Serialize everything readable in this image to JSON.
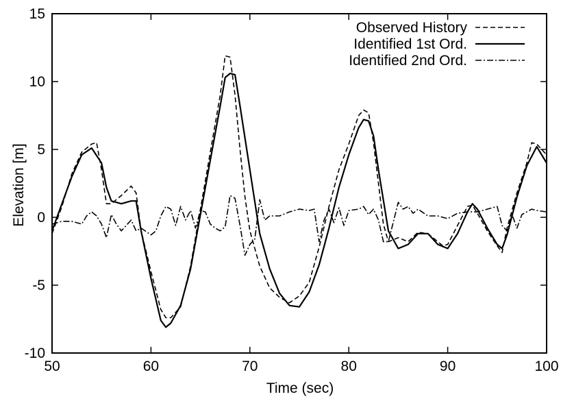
{
  "chart_data": {
    "type": "line",
    "title": "",
    "xlabel": "Time (sec)",
    "ylabel": "Elevation [m]",
    "xlim": [
      50,
      100
    ],
    "ylim": [
      -10,
      15
    ],
    "xticks": [
      50,
      60,
      70,
      80,
      90,
      100
    ],
    "yticks": [
      -10,
      -5,
      0,
      5,
      10,
      15
    ],
    "xtick_labels": [
      "50",
      "60",
      "70",
      "80",
      "90",
      "100"
    ],
    "ytick_labels": [
      "-10",
      "-5",
      "0",
      "5",
      "10",
      "15"
    ],
    "grid": false,
    "legend_position": "top-right",
    "series": [
      {
        "name": "Observed History",
        "line_style": "dashed",
        "color": "#000000",
        "x": [
          50,
          51,
          52,
          53,
          54,
          54.5,
          55,
          55.5,
          56,
          57,
          58,
          58.5,
          59,
          60,
          61,
          61.5,
          62,
          63,
          64,
          65,
          66,
          67,
          67.5,
          68,
          68.5,
          69,
          69.5,
          70,
          71,
          72,
          73,
          74,
          75,
          76,
          77,
          78,
          79,
          80,
          81,
          81.5,
          82,
          82.5,
          83,
          83.5,
          84,
          85,
          86,
          87,
          88,
          89,
          89.5,
          90,
          91,
          92,
          92.5,
          93,
          94,
          95,
          95.5,
          96,
          97,
          98,
          98.5,
          99,
          100
        ],
        "y": [
          -1.2,
          0.8,
          3.2,
          4.8,
          5.4,
          5.5,
          3.5,
          1.0,
          1.0,
          1.6,
          2.3,
          1.8,
          -1.0,
          -4.0,
          -6.8,
          -7.4,
          -7.4,
          -6.6,
          -3.6,
          0.6,
          4.8,
          9.0,
          11.9,
          11.8,
          9.0,
          5.0,
          1.5,
          -1.0,
          -3.6,
          -5.2,
          -5.9,
          -6.3,
          -5.8,
          -4.8,
          -2.2,
          0.8,
          3.5,
          5.4,
          7.5,
          7.9,
          7.7,
          5.5,
          2.5,
          -0.5,
          -1.8,
          -1.5,
          -1.8,
          -1.1,
          -1.2,
          -1.8,
          -2.1,
          -2.0,
          -0.6,
          0.8,
          0.9,
          0.3,
          -1.0,
          -2.1,
          -2.6,
          -0.8,
          1.8,
          4.0,
          5.5,
          5.4,
          4.6
        ]
      },
      {
        "name": "Identified 1st Ord.",
        "line_style": "solid",
        "color": "#000000",
        "x": [
          50,
          51,
          52,
          53,
          54,
          55,
          55.5,
          56,
          57,
          58,
          58.5,
          59,
          60,
          61,
          61.5,
          62,
          63,
          64,
          65,
          66,
          67,
          67.5,
          68,
          68.5,
          69,
          70,
          71,
          72,
          73,
          74,
          75,
          76,
          77,
          78,
          79,
          80,
          81,
          81.5,
          82,
          82.5,
          83,
          84,
          85,
          86,
          87,
          88,
          89,
          90,
          91,
          92,
          92.5,
          93,
          94,
          95,
          95.5,
          96,
          97,
          98,
          99,
          100
        ],
        "y": [
          -1.0,
          1.0,
          3.0,
          4.6,
          5.1,
          4.0,
          2.2,
          1.2,
          1.0,
          1.2,
          1.2,
          -1.0,
          -4.5,
          -7.6,
          -8.1,
          -7.8,
          -6.5,
          -3.8,
          0.2,
          4.2,
          8.2,
          10.3,
          10.6,
          10.5,
          8.2,
          3.5,
          -1.2,
          -3.8,
          -5.6,
          -6.5,
          -6.6,
          -5.5,
          -3.5,
          -0.8,
          2.2,
          4.6,
          6.6,
          7.2,
          7.1,
          6.0,
          3.5,
          -1.0,
          -2.3,
          -2.0,
          -1.2,
          -1.2,
          -2.0,
          -2.3,
          -1.2,
          0.4,
          1.0,
          0.6,
          -0.8,
          -2.0,
          -2.3,
          -1.3,
          1.5,
          3.8,
          5.2,
          4.0
        ]
      },
      {
        "name": "Identified 2nd Ord.",
        "line_style": "dashdot",
        "color": "#000000",
        "x": [
          50,
          51,
          52,
          53,
          53.5,
          54,
          54.5,
          55,
          55.5,
          56,
          56.5,
          57,
          57.5,
          58,
          58.5,
          59,
          60,
          60.5,
          61,
          61.5,
          62,
          62.5,
          63,
          63.5,
          64,
          64.5,
          65,
          65.5,
          66,
          66.5,
          67,
          67.5,
          68,
          68.5,
          69,
          69.5,
          70,
          70.5,
          71,
          71.5,
          72,
          73,
          74,
          75,
          76,
          76.5,
          77,
          77.5,
          78,
          78.5,
          79,
          79.5,
          80,
          81,
          81.5,
          82,
          82.5,
          83,
          83.5,
          84,
          85,
          85.5,
          86,
          86.5,
          87,
          88,
          89,
          90,
          91,
          92,
          93,
          94,
          95,
          95.5,
          96,
          96.5,
          97,
          97.5,
          98,
          98.5,
          99,
          100
        ],
        "y": [
          -0.5,
          -0.3,
          -0.3,
          -0.5,
          0.1,
          0.4,
          0.1,
          -0.5,
          -1.5,
          0.2,
          -0.5,
          -1.0,
          -0.6,
          -0.2,
          -1.0,
          -0.8,
          -1.3,
          -1.0,
          0.1,
          0.8,
          0.6,
          -0.6,
          0.8,
          -0.2,
          0.5,
          -0.8,
          0.5,
          0.4,
          -0.5,
          -0.8,
          -1.0,
          -0.7,
          1.6,
          1.4,
          -0.6,
          -2.8,
          -2.0,
          -1.6,
          1.3,
          -0.2,
          0.1,
          0.1,
          0.4,
          0.6,
          0.5,
          0.6,
          -1.8,
          -0.2,
          0.6,
          -0.4,
          0.7,
          -0.6,
          0.5,
          0.6,
          0.8,
          0.2,
          0.6,
          -0.2,
          -1.8,
          -1.8,
          1.1,
          0.6,
          0.8,
          0.3,
          0.6,
          0.1,
          0.1,
          -0.1,
          0.3,
          0.4,
          0.4,
          0.6,
          0.8,
          -0.6,
          -1.0,
          0.2,
          -0.8,
          0.2,
          0.4,
          0.6,
          0.5,
          0.4
        ]
      }
    ]
  }
}
